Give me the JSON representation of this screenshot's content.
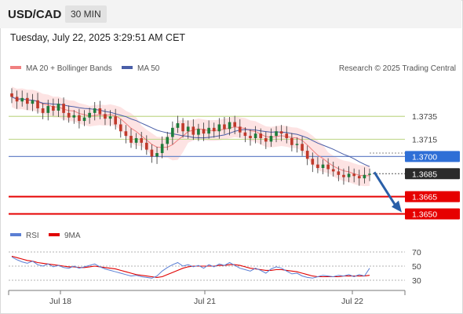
{
  "header": {
    "pair": "USD/CAD",
    "timeframe": "30 MIN"
  },
  "timestamp": "Tuesday, July 22, 2025 3:29:51 AM CET",
  "legend": {
    "bb_label": "MA 20 + Bollinger Bands",
    "ma50_label": "MA 50",
    "copyright": "Research © 2025 Trading Central"
  },
  "rsi_legend": {
    "rsi_label": "RSI",
    "ma_label": "9MA"
  },
  "colors": {
    "candle_up": "#1e7d3c",
    "candle_down": "#c0392b",
    "ma20": "#f08080",
    "band_fill": "#fde3e3",
    "ma50": "#4a5fa8",
    "resistance": "#c2d98f",
    "pivot": "#6b86c9",
    "support": "#e60000",
    "arrow": "#2a5fa8",
    "rsi": "#5b7fd4",
    "rsi_ma": "#e00000"
  },
  "chart_data": [
    {
      "type": "candlestick",
      "title": "USD/CAD 30 MIN",
      "x_ticks": [
        "Jul 18",
        "Jul 21",
        "Jul 22"
      ],
      "y_range": [
        1.3638,
        1.3768
      ],
      "last_price": 1.3685,
      "levels": [
        {
          "value": 1.3735,
          "label": "1.3735",
          "role": "resistance"
        },
        {
          "value": 1.3715,
          "label": "1.3715",
          "role": "resistance"
        },
        {
          "value": 1.37,
          "label": "1.3700",
          "role": "pivot"
        },
        {
          "value": 1.3665,
          "label": "1.3665",
          "role": "support"
        },
        {
          "value": 1.365,
          "label": "1.3650",
          "role": "support"
        }
      ],
      "price_path": [
        1.3752,
        1.3748,
        1.3751,
        1.3746,
        1.3749,
        1.3742,
        1.3738,
        1.3744,
        1.374,
        1.3746,
        1.3738,
        1.3734,
        1.3736,
        1.3731,
        1.3734,
        1.3738,
        1.3742,
        1.3737,
        1.3733,
        1.3735,
        1.3728,
        1.3722,
        1.3718,
        1.3712,
        1.3716,
        1.3712,
        1.3706,
        1.37,
        1.3703,
        1.3711,
        1.3717,
        1.3725,
        1.3729,
        1.3722,
        1.3726,
        1.3719,
        1.3724,
        1.372,
        1.3725,
        1.3722,
        1.3728,
        1.3724,
        1.373,
        1.3726,
        1.3721,
        1.3718,
        1.3716,
        1.372,
        1.3716,
        1.3713,
        1.3718,
        1.3722,
        1.372,
        1.3716,
        1.371,
        1.3711,
        1.3705,
        1.3698,
        1.3693,
        1.369,
        1.3693,
        1.3689,
        1.3687,
        1.3684,
        1.3682,
        1.3685,
        1.3683,
        1.3681,
        1.3684,
        1.3685
      ]
    },
    {
      "type": "line",
      "title": "RSI",
      "y_ticks": [
        70,
        50,
        30
      ],
      "y_range": [
        20,
        80
      ],
      "rsi": [
        63,
        59,
        56,
        54,
        57,
        52,
        50,
        53,
        49,
        51,
        48,
        47,
        50,
        47,
        49,
        51,
        53,
        49,
        46,
        44,
        42,
        40,
        38,
        36,
        37,
        35,
        34,
        33,
        36,
        43,
        48,
        52,
        55,
        50,
        52,
        49,
        51,
        47,
        52,
        49,
        53,
        51,
        55,
        51,
        47,
        45,
        43,
        47,
        44,
        40,
        46,
        49,
        47,
        43,
        39,
        40,
        36,
        34,
        33,
        35,
        37,
        36,
        35,
        37,
        36,
        38,
        35,
        38,
        36,
        47
      ],
      "rsi_ma": [
        64,
        62,
        60,
        58,
        57,
        55,
        54,
        53,
        52,
        51,
        50,
        49,
        49,
        48,
        48,
        49,
        50,
        49,
        48,
        47,
        46,
        44,
        42,
        40,
        38,
        37,
        36,
        35,
        34,
        35,
        38,
        41,
        44,
        47,
        49,
        50,
        50,
        50,
        50,
        50,
        51,
        51,
        52,
        52,
        51,
        49,
        47,
        46,
        45,
        44,
        44,
        45,
        45,
        44,
        43,
        42,
        40,
        38,
        36,
        35,
        35,
        35,
        35,
        35,
        36,
        36,
        36,
        36,
        36,
        37
      ]
    }
  ]
}
